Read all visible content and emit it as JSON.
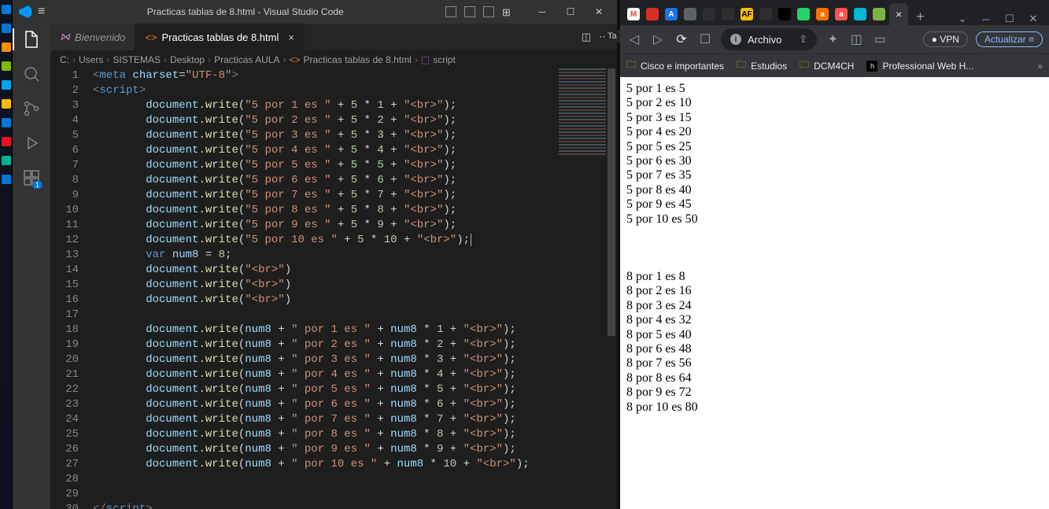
{
  "vscode": {
    "title": "Practicas tablas de 8.html - Visual Studio Code",
    "tabs": {
      "welcome": "Bienvenido",
      "file": "Practicas tablas de 8.html"
    },
    "breadcrumbs": [
      "C:",
      "Users",
      "SISTEMAS",
      "Desktop",
      "Practicas AULA",
      "Practicas tablas de 8.html",
      "script"
    ],
    "activity_badge": "1",
    "code": {
      "lines": [
        {
          "n": 1,
          "type": "meta"
        },
        {
          "n": 2,
          "type": "open_script"
        },
        {
          "n": 3,
          "type": "dw5",
          "i": 1
        },
        {
          "n": 4,
          "type": "dw5",
          "i": 2
        },
        {
          "n": 5,
          "type": "dw5",
          "i": 3
        },
        {
          "n": 6,
          "type": "dw5",
          "i": 4
        },
        {
          "n": 7,
          "type": "dw5",
          "i": 5
        },
        {
          "n": 8,
          "type": "dw5",
          "i": 6
        },
        {
          "n": 9,
          "type": "dw5",
          "i": 7
        },
        {
          "n": 10,
          "type": "dw5",
          "i": 8
        },
        {
          "n": 11,
          "type": "dw5",
          "i": 9
        },
        {
          "n": 12,
          "type": "dw5_10"
        },
        {
          "n": 13,
          "type": "var8"
        },
        {
          "n": 14,
          "type": "dwbr"
        },
        {
          "n": 15,
          "type": "dwbr"
        },
        {
          "n": 16,
          "type": "dwbr"
        },
        {
          "n": 17,
          "type": "blank"
        },
        {
          "n": 18,
          "type": "dw8",
          "i": 1
        },
        {
          "n": 19,
          "type": "dw8",
          "i": 2
        },
        {
          "n": 20,
          "type": "dw8",
          "i": 3
        },
        {
          "n": 21,
          "type": "dw8",
          "i": 4
        },
        {
          "n": 22,
          "type": "dw8",
          "i": 5
        },
        {
          "n": 23,
          "type": "dw8",
          "i": 6
        },
        {
          "n": 24,
          "type": "dw8",
          "i": 7
        },
        {
          "n": 25,
          "type": "dw8",
          "i": 8
        },
        {
          "n": 26,
          "type": "dw8",
          "i": 9
        },
        {
          "n": 27,
          "type": "dw8_10"
        },
        {
          "n": 28,
          "type": "blank"
        },
        {
          "n": 29,
          "type": "blank"
        },
        {
          "n": 30,
          "type": "close_script"
        }
      ]
    }
  },
  "panel_tab": "Ta",
  "browser": {
    "omnibox_label": "Archivo",
    "vpn_label": "VPN",
    "update_label": "Actualizar",
    "tab_close": "×",
    "bookmarks": [
      {
        "label": "Cisco e importantes",
        "type": "folder"
      },
      {
        "label": "Estudios",
        "type": "folder"
      },
      {
        "label": "DCM4CH",
        "type": "folder"
      },
      {
        "label": "Professional Web H...",
        "type": "site"
      }
    ],
    "favicons": [
      {
        "bg": "#ffffff",
        "fg": "#ea4335",
        "t": "M"
      },
      {
        "bg": "#d93025",
        "fg": "#fff",
        "t": ""
      },
      {
        "bg": "#1a73e8",
        "fg": "#fff",
        "t": "A"
      },
      {
        "bg": "#5f6368",
        "fg": "#fff",
        "t": ""
      },
      {
        "bg": "#2d2e30",
        "fg": "#9aa0a6",
        "t": ""
      },
      {
        "bg": "#2d2e30",
        "fg": "#9aa0a6",
        "t": ""
      },
      {
        "bg": "#fbbc04",
        "fg": "#000",
        "t": "AF"
      },
      {
        "bg": "#2d2e30",
        "fg": "#9aa0a6",
        "t": ""
      },
      {
        "bg": "#000",
        "fg": "#fff",
        "t": ""
      },
      {
        "bg": "#25d366",
        "fg": "#fff",
        "t": ""
      },
      {
        "bg": "#ff6f00",
        "fg": "#fff",
        "t": "a"
      },
      {
        "bg": "#ff5252",
        "fg": "#fff",
        "t": "a"
      },
      {
        "bg": "#00b8d4",
        "fg": "#fff",
        "t": ""
      },
      {
        "bg": "#7cb342",
        "fg": "#fff",
        "t": ""
      }
    ],
    "output": [
      "5 por 1 es 5",
      "5 por 2 es 10",
      "5 por 3 es 15",
      "5 por 4 es 20",
      "5 por 5 es 25",
      "5 por 6 es 30",
      "5 por 7 es 35",
      "5 por 8 es 40",
      "5 por 9 es 45",
      "5 por 10 es 50",
      "",
      "",
      "",
      "8 por 1 es 8",
      "8 por 2 es 16",
      "8 por 3 es 24",
      "8 por 4 es 32",
      "8 por 5 es 40",
      "8 por 6 es 48",
      "8 por 7 es 56",
      "8 por 8 es 64",
      "8 por 9 es 72",
      "8 por 10 es 80"
    ]
  },
  "colors": {
    "vscode_bg": "#1e1e1e",
    "vscode_titlebar": "#323233",
    "activity": "#333333",
    "browser_chrome": "#35363a",
    "browser_dark": "#202124",
    "accent": "#007acc"
  }
}
